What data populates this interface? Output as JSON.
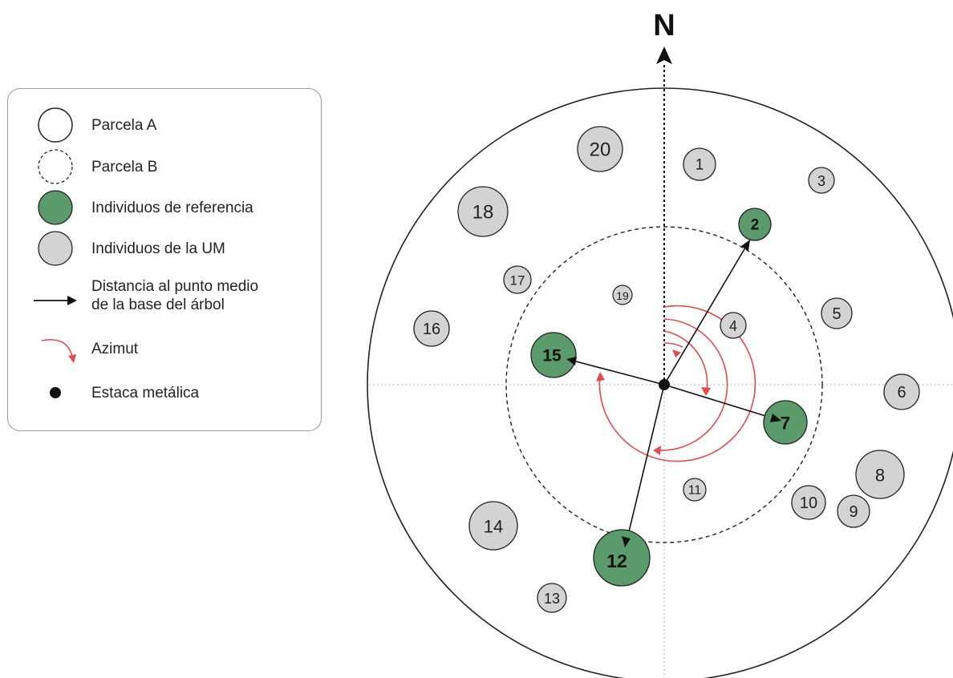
{
  "north_label": "N",
  "legend": {
    "items": [
      {
        "symbol": "parcela-a-icon",
        "label": "Parcela A"
      },
      {
        "symbol": "parcela-b-icon",
        "label": "Parcela B"
      },
      {
        "symbol": "reference-tree-icon",
        "label": "Individuos de referencia"
      },
      {
        "symbol": "um-tree-icon",
        "label": "Individuos de la UM"
      },
      {
        "symbol": "arrow-icon",
        "label_line1": "Distancia al punto medio",
        "label_line2": "de la base del árbol"
      },
      {
        "symbol": "azimuth-arc-icon",
        "label": "Azimut"
      },
      {
        "symbol": "stake-icon",
        "label": "Estaca metálica"
      }
    ]
  },
  "colors": {
    "reference_fill": "#5a9a6b",
    "um_fill": "#d3d3d3",
    "azimuth": "#e8484a",
    "outline": "#222222"
  },
  "trees": {
    "reference": [
      "2",
      "7",
      "12",
      "15"
    ],
    "um": [
      "1",
      "3",
      "4",
      "5",
      "6",
      "8",
      "9",
      "10",
      "11",
      "13",
      "14",
      "16",
      "17",
      "18",
      "19",
      "20"
    ]
  }
}
